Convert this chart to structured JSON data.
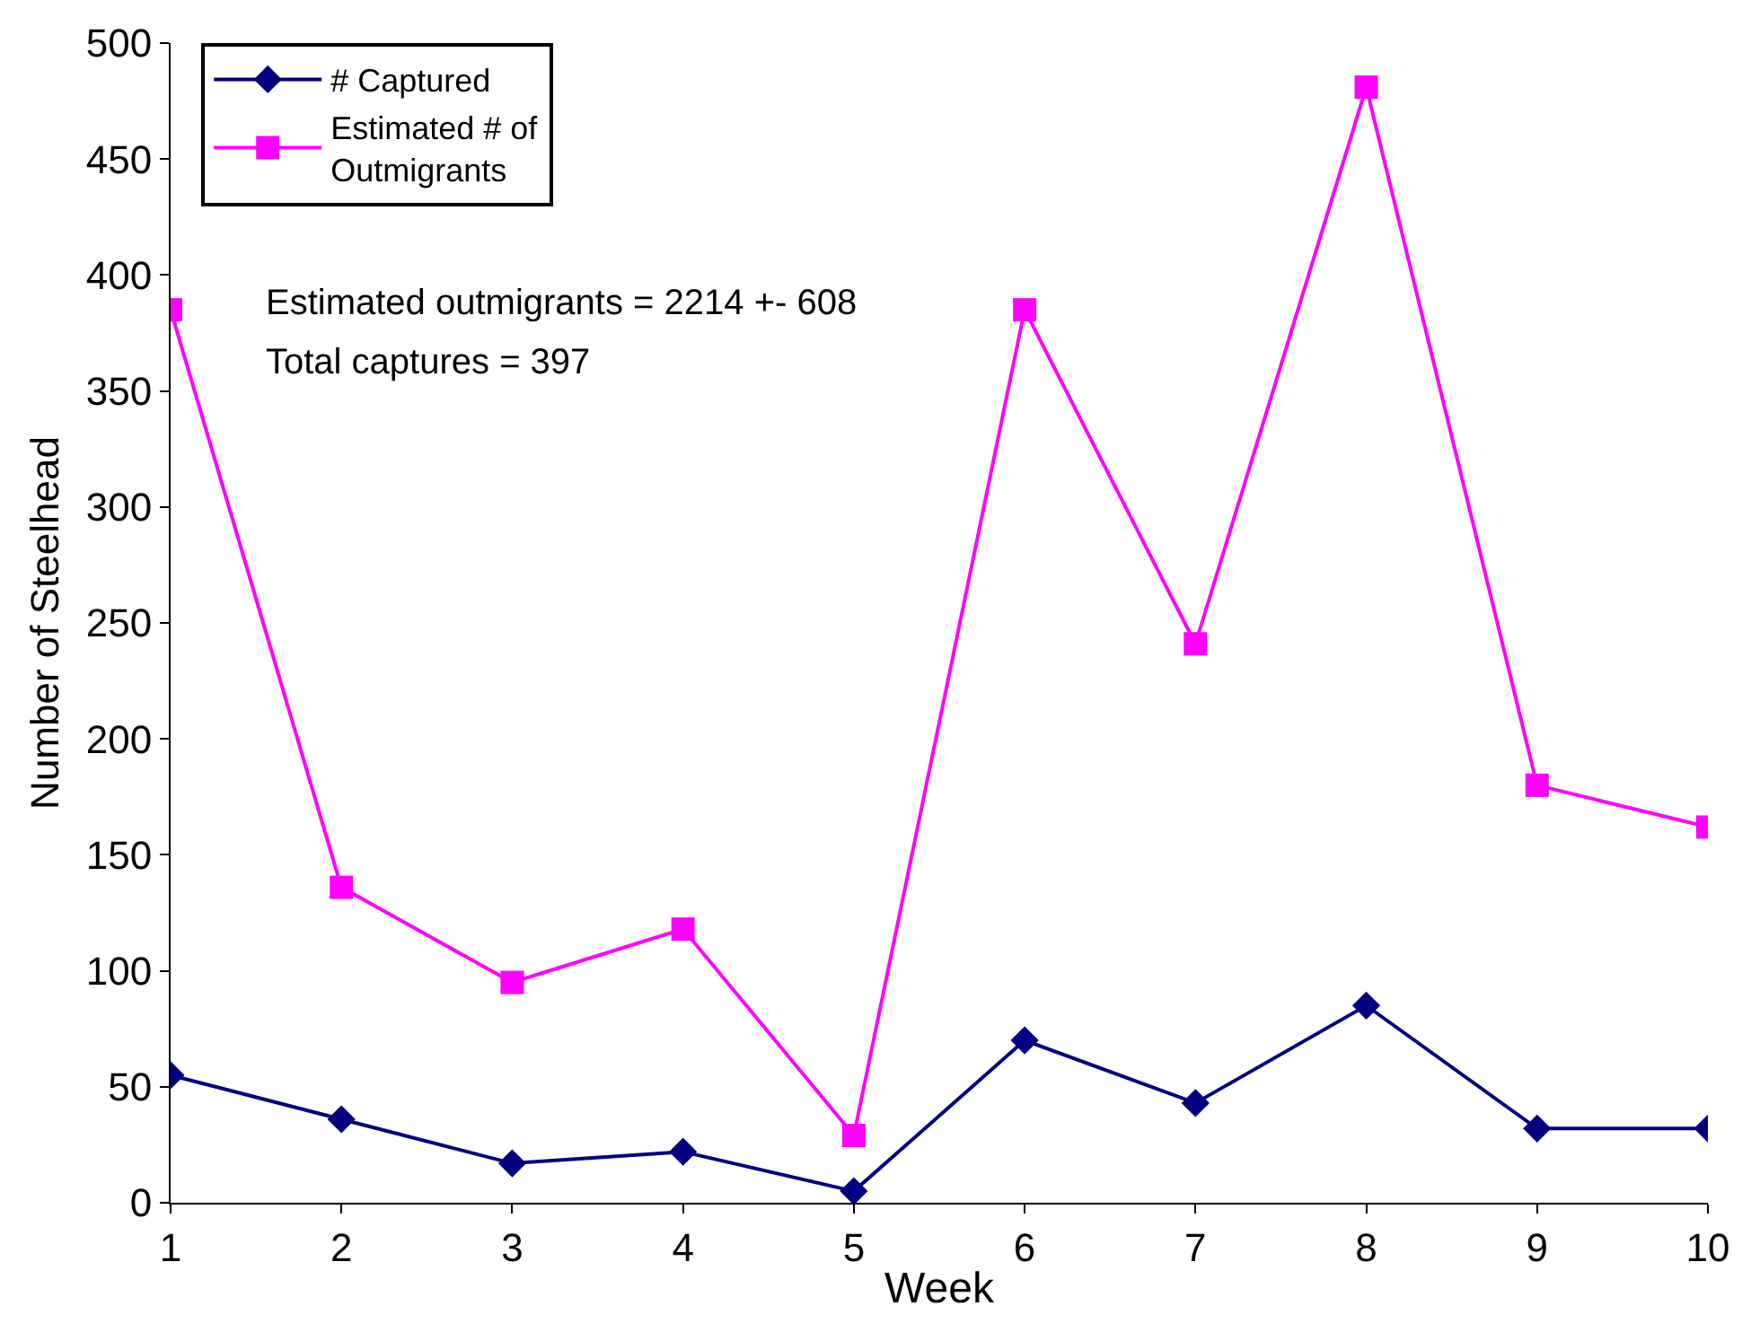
{
  "chart_data": {
    "type": "line",
    "xlabel": "Week",
    "ylabel": "Number of Steelhead",
    "x": [
      1,
      2,
      3,
      4,
      5,
      6,
      7,
      8,
      9,
      10
    ],
    "series": [
      {
        "name": "# Captured",
        "color": "#000080",
        "marker": "diamond",
        "values": [
          55,
          36,
          17,
          22,
          5,
          70,
          43,
          85,
          32,
          32
        ]
      },
      {
        "name": "Estimated # of Outmigrants",
        "color": "#ff00ff",
        "marker": "square",
        "values": [
          385,
          136,
          95,
          118,
          29,
          385,
          241,
          481,
          180,
          162
        ]
      }
    ],
    "xlim": [
      1,
      10
    ],
    "xticks": [
      1,
      2,
      3,
      4,
      5,
      6,
      7,
      8,
      9,
      10
    ],
    "ylim": [
      0,
      500
    ],
    "yticks": [
      0,
      50,
      100,
      150,
      200,
      250,
      300,
      350,
      400,
      450,
      500
    ],
    "annotations": [
      "Estimated outmigrants = 2214 +- 608",
      "Total captures = 397"
    ],
    "legend": "top left"
  }
}
